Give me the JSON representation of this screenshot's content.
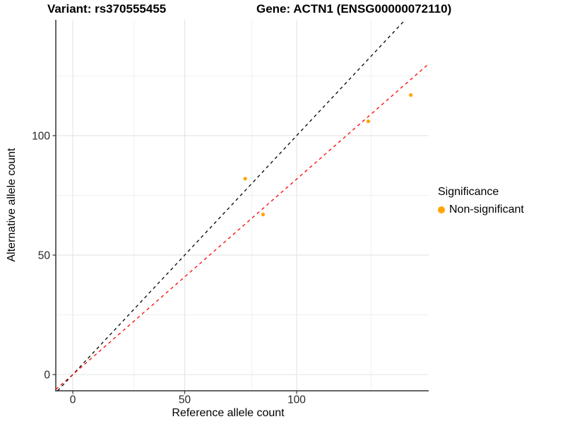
{
  "figure": {
    "title_left": "Variant: rs370555455",
    "title_right": "Gene: ACTN1 (ENSG00000072110)"
  },
  "chart_data": {
    "type": "scatter",
    "title": "Variant: rs370555455    Gene: ACTN1 (ENSG00000072110)",
    "xlabel": "Reference allele count",
    "ylabel": "Alternative allele count",
    "xlim": [
      -7.6,
      159
    ],
    "ylim": [
      -6.8,
      148.5
    ],
    "x_ticks": [
      0,
      50,
      100
    ],
    "y_ticks": [
      0,
      50,
      100
    ],
    "x_minor": [
      27.4,
      80,
      133.3
    ],
    "y_minor": [
      25,
      75,
      125
    ],
    "grid": true,
    "background": "#ffffff",
    "grid_major_color": "#e3e3e3",
    "grid_minor_color": "#efefef",
    "axis_color": "#333333",
    "series": [
      {
        "name": "Non-significant",
        "color": "#FFA500",
        "points": [
          [
            77,
            82
          ],
          [
            85,
            67
          ],
          [
            132,
            106
          ],
          [
            151,
            117
          ]
        ]
      }
    ],
    "lines": [
      {
        "name": "identity-line",
        "slope": 1,
        "intercept": 0,
        "color": "#000000",
        "style": "dashed"
      },
      {
        "name": "fit-line",
        "slope": 0.818,
        "intercept": 0,
        "color": "#FF0000",
        "style": "dashed"
      }
    ],
    "legend": {
      "title": "Significance",
      "position": "right",
      "entries": [
        {
          "label": "Non-significant",
          "color": "#FFA500"
        }
      ]
    }
  }
}
